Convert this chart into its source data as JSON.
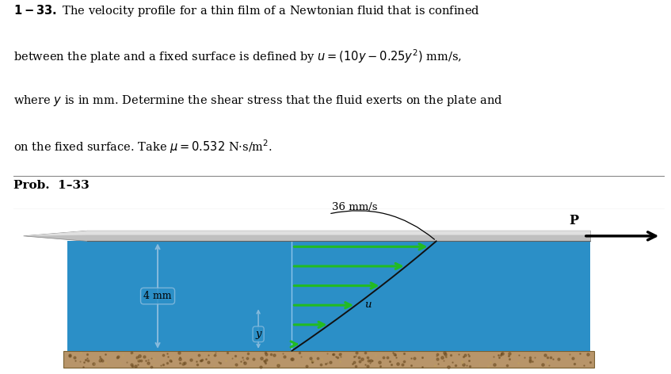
{
  "fluid_color": "#2b8fc7",
  "arrow_color": "#22bb22",
  "background_color": "#ffffff",
  "plate_color": "#c0c0c0",
  "plate_sheen": "#e0e0e0",
  "plate_dark": "#909090",
  "ground_color": "#b8956a",
  "dim_line_color": "#88bbdd",
  "profile_line_color": "#111111",
  "label_36": "36 mm/s",
  "label_P": "P",
  "label_4mm": "4 mm",
  "label_y": "y",
  "label_u": "u",
  "num_arrows": 6,
  "u_max": 36.0,
  "y_max_mm": 4.0
}
